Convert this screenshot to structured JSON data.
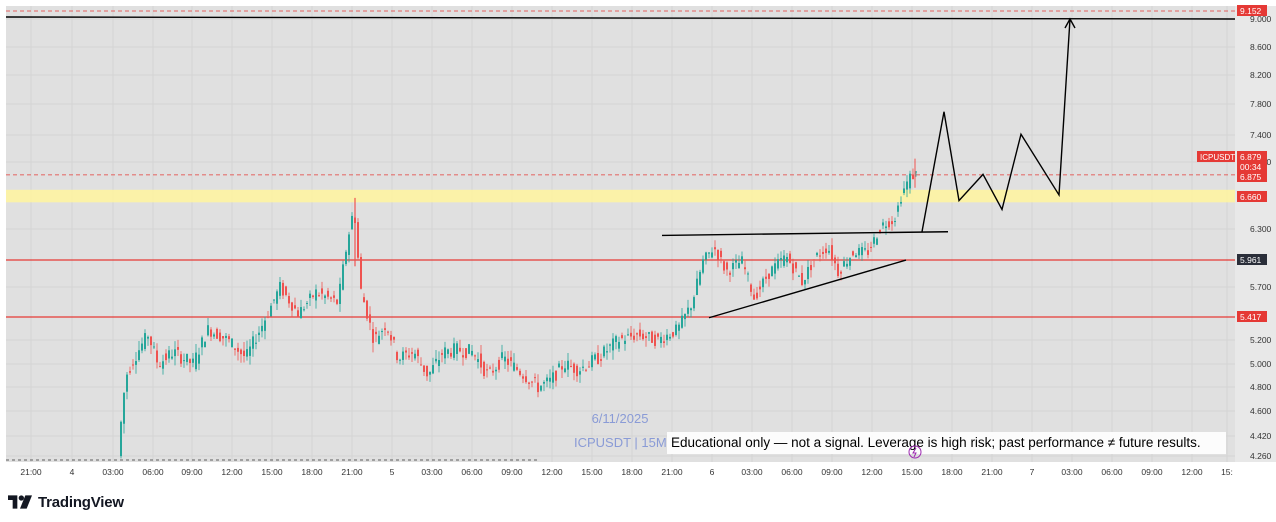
{
  "brand": {
    "name": "TradingView"
  },
  "colors": {
    "chart_bg": "#e0e0e0",
    "grid": "#d4d4d4",
    "up": "#26a69a",
    "down": "#ef5350",
    "level_line": "#e53935",
    "zone": "#fff59d",
    "trend": "#000000",
    "axis_text": "#333333",
    "watermark": "#8a9bd6"
  },
  "chart_data": {
    "type": "candlestick",
    "symbol": "ICPUSDT",
    "timeframe": "15M",
    "watermark_date": "6/11/2025",
    "watermark_symbol": "ICPUSDT | 15M",
    "ylim": [
      4.2,
      9.2
    ],
    "y_ticks": [
      "9.000",
      "8.600",
      "8.200",
      "7.800",
      "7.400",
      "7.000",
      "6.300",
      "5.700",
      "5.200",
      "5.000",
      "4.800",
      "4.600",
      "4.420",
      "4.260"
    ],
    "y_tick_values": [
      9.0,
      8.6,
      8.2,
      7.8,
      7.4,
      7.0,
      6.3,
      5.7,
      5.2,
      5.0,
      4.8,
      4.6,
      4.42,
      4.26
    ],
    "x_ticks": [
      "21:00",
      "4",
      "03:00",
      "06:00",
      "09:00",
      "12:00",
      "15:00",
      "18:00",
      "21:00",
      "5",
      "03:00",
      "06:00",
      "09:00",
      "12:00",
      "15:00",
      "18:00",
      "21:00",
      "6",
      "03:00",
      "06:00",
      "09:00",
      "12:00",
      "15:00",
      "18:00",
      "21:00",
      "7",
      "03:00",
      "06:00",
      "09:00",
      "12:00",
      "15:"
    ],
    "price_labels": [
      {
        "text": "9.152",
        "value": 9.152,
        "color": "#e53935"
      },
      {
        "text": "6.879",
        "value": 6.879,
        "color": "#e53935"
      },
      {
        "text": "00:34",
        "value": 6.835,
        "color": "#e53935"
      },
      {
        "text": "6.875",
        "value": 6.875,
        "color": "#e53935"
      },
      {
        "text": "6.660",
        "value": 6.66,
        "color": "#e53935"
      },
      {
        "text": "5.961",
        "value": 5.961,
        "color": "#2a2e39"
      },
      {
        "text": "5.417",
        "value": 5.417,
        "color": "#e53935"
      }
    ],
    "symbol_badge": "ICPUSDT",
    "horizontal_levels": [
      {
        "value": 5.961,
        "style": "solid-red"
      },
      {
        "value": 5.417,
        "style": "solid-red"
      },
      {
        "value": 6.875,
        "style": "dashed-red"
      },
      {
        "value": 9.152,
        "style": "dashed-red"
      },
      {
        "value": 9.0,
        "style": "solid-black"
      }
    ],
    "zone": {
      "from": 6.6,
      "to": 6.73
    },
    "patterns": {
      "resistance_line": [
        [
          662,
          6.23
        ],
        [
          948,
          6.27
        ]
      ],
      "support_line": [
        [
          709,
          5.41
        ],
        [
          906,
          5.96
        ]
      ],
      "projection": [
        [
          922,
          6.27
        ],
        [
          944,
          7.7
        ],
        [
          959,
          6.62
        ],
        [
          983,
          6.88
        ],
        [
          1002,
          6.52
        ],
        [
          1021,
          7.41
        ],
        [
          1059,
          6.68
        ],
        [
          1070,
          9.0
        ]
      ]
    },
    "annotation": "Educational only — not a signal. Leverage is high risk; past performance ≠ future results.",
    "grid": true
  }
}
